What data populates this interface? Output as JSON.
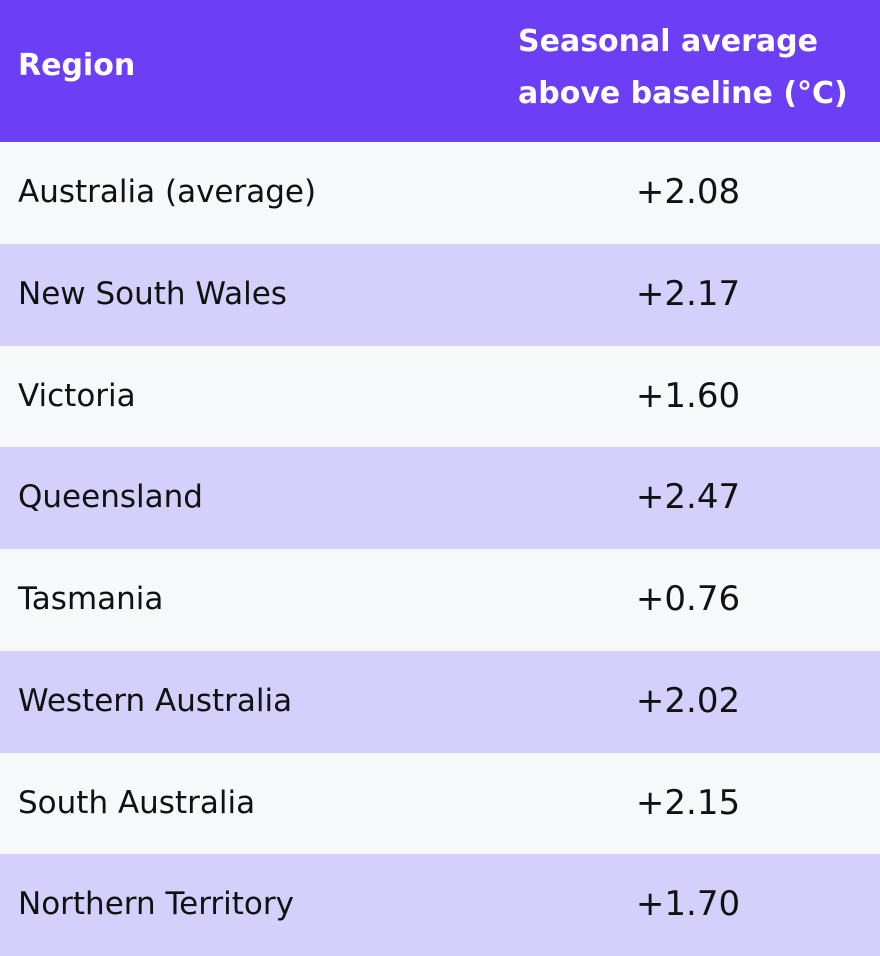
{
  "table": {
    "header": [
      "Region",
      "Seasonal average above baseline (°C)"
    ],
    "rows": [
      [
        "Australia (average)",
        "+2.08"
      ],
      [
        "New South Wales",
        "+2.17"
      ],
      [
        "Victoria",
        "+1.60"
      ],
      [
        "Queensland",
        "+2.47"
      ],
      [
        "Tasmania",
        "+0.76"
      ],
      [
        "Western Australia",
        "+2.02"
      ],
      [
        "South Australia",
        "+2.15"
      ],
      [
        "Northern Territory",
        "+1.70"
      ]
    ]
  }
}
